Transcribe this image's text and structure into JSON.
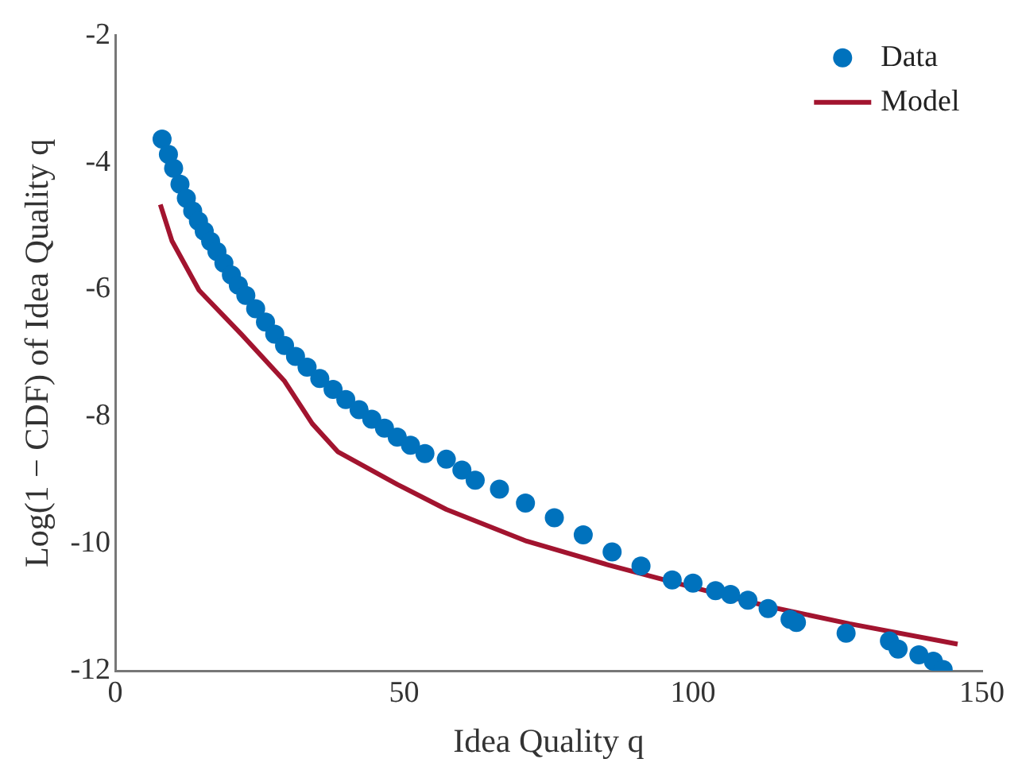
{
  "chart_data": {
    "type": "scatter",
    "xlabel": "Idea Quality q",
    "ylabel": "Log(1 − CDF) of Idea Quality q",
    "xlim": [
      0,
      150
    ],
    "ylim": [
      -12,
      -2
    ],
    "xticks": [
      0,
      50,
      100,
      150
    ],
    "yticks": [
      -12,
      -10,
      -8,
      -6,
      -4,
      -2
    ],
    "grid": false,
    "legend": "top right",
    "marker": "circle",
    "series": [
      {
        "name": "Data",
        "type": "scatter",
        "color": "#0072bd",
        "x": [
          8.1,
          9.2,
          10.1,
          11.2,
          12.3,
          13.4,
          14.4,
          15.4,
          16.5,
          17.6,
          18.8,
          20.1,
          21.3,
          22.6,
          24.3,
          26.0,
          27.6,
          29.3,
          31.2,
          33.2,
          35.4,
          37.7,
          39.9,
          42.2,
          44.4,
          46.6,
          48.8,
          51.1,
          53.6,
          57.3,
          60,
          62.3,
          66.5,
          71,
          76,
          81,
          86,
          91,
          96.4,
          100,
          103.9,
          106.5,
          109.5,
          113,
          116.8,
          117.9,
          126.5,
          134,
          135.5,
          139.1,
          141.6,
          143.3
        ],
        "values": [
          -3.63,
          -3.87,
          -4.09,
          -4.34,
          -4.56,
          -4.76,
          -4.92,
          -5.08,
          -5.24,
          -5.4,
          -5.58,
          -5.77,
          -5.93,
          -6.09,
          -6.3,
          -6.51,
          -6.7,
          -6.88,
          -7.05,
          -7.22,
          -7.4,
          -7.57,
          -7.73,
          -7.89,
          -8.04,
          -8.18,
          -8.32,
          -8.45,
          -8.58,
          -8.67,
          -8.84,
          -9.0,
          -9.14,
          -9.36,
          -9.59,
          -9.86,
          -10.13,
          -10.35,
          -10.57,
          -10.62,
          -10.74,
          -10.8,
          -10.89,
          -11.02,
          -11.19,
          -11.24,
          -11.41,
          -11.53,
          -11.66,
          -11.75,
          -11.85,
          -11.98
        ]
      },
      {
        "name": "Model",
        "type": "line",
        "color": "#a2142f",
        "marker": "none",
        "x": [
          7.8,
          9.8,
          14.5,
          21.8,
          29.3,
          34.1,
          38.5,
          48.9,
          57.3,
          71.2,
          85.2,
          99.2,
          113.1,
          127.1,
          145.8
        ],
        "values": [
          -4.66,
          -5.23,
          -6.01,
          -6.7,
          -7.44,
          -8.11,
          -8.55,
          -9.07,
          -9.46,
          -9.96,
          -10.33,
          -10.67,
          -10.99,
          -11.26,
          -11.58
        ]
      }
    ]
  }
}
